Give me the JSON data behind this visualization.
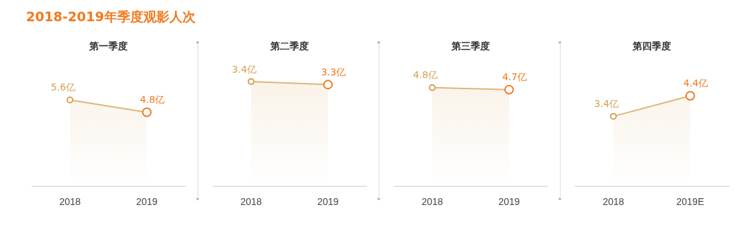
{
  "chart_data": [
    {
      "type": "other",
      "title": "2018-2019年季度观影人次"
    },
    {
      "type": "area",
      "title": "第一季度",
      "categories": [
        "2018",
        "2019"
      ],
      "values": [
        5.6,
        4.8
      ],
      "value_labels": [
        "5.6亿",
        "4.8亿"
      ],
      "color": "#ddb57a",
      "colors": [
        "#d4a257",
        "#f07b22"
      ],
      "marker": "circle",
      "tick_labels": "x",
      "legend": false
    },
    {
      "type": "area",
      "title": "第二季度",
      "categories": [
        "2018",
        "2019"
      ],
      "values": [
        3.4,
        3.3
      ],
      "value_labels": [
        "3.4亿",
        "3.3亿"
      ],
      "color": "#ddb57a",
      "colors": [
        "#d4a257",
        "#f07b22"
      ],
      "marker": "circle",
      "tick_labels": "x",
      "legend": false
    },
    {
      "type": "area",
      "title": "第三季度",
      "categories": [
        "2018",
        "2019"
      ],
      "values": [
        4.8,
        4.7
      ],
      "value_labels": [
        "4.8亿",
        "4.7亿"
      ],
      "color": "#ddb57a",
      "colors": [
        "#d4a257",
        "#f07b22"
      ],
      "marker": "circle",
      "tick_labels": "x",
      "legend": false
    },
    {
      "type": "area",
      "title": "第四季度",
      "categories": [
        "2018",
        "2019E"
      ],
      "values": [
        3.4,
        4.4
      ],
      "value_labels": [
        "3.4亿",
        "4.4亿"
      ],
      "color": "#ddb57a",
      "colors": [
        "#d4a257",
        "#f07b22"
      ],
      "marker": "circle",
      "tick_labels": "x",
      "legend": false
    }
  ]
}
